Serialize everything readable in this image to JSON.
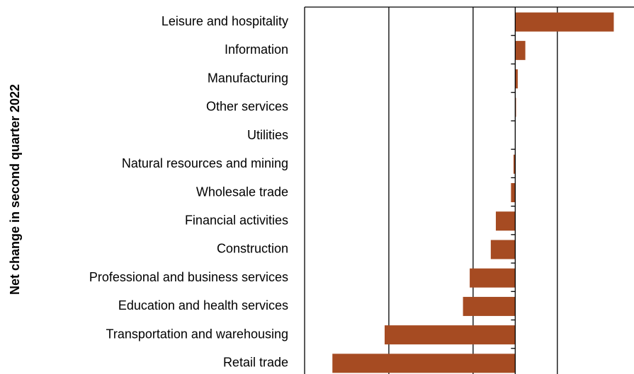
{
  "chart_data": {
    "type": "hbar",
    "y_label": "Net change in second quarter 2022",
    "categories": [
      "Leisure and hospitality",
      "Information",
      "Manufacturing",
      "Other services",
      "Utilities",
      "Natural resources and mining",
      "Wholesale trade",
      "Financial activities",
      "Construction",
      "Professional and business services",
      "Education and health services",
      "Transportation and warehousing",
      "Retail trade"
    ],
    "values": [
      117,
      12,
      3,
      1,
      0,
      -2,
      -5,
      -23,
      -29,
      -54,
      -62,
      -155,
      -217
    ],
    "color": "#a64b22",
    "xlim": [
      -250,
      141
    ],
    "gridlines": [
      -150,
      -50,
      50
    ]
  }
}
